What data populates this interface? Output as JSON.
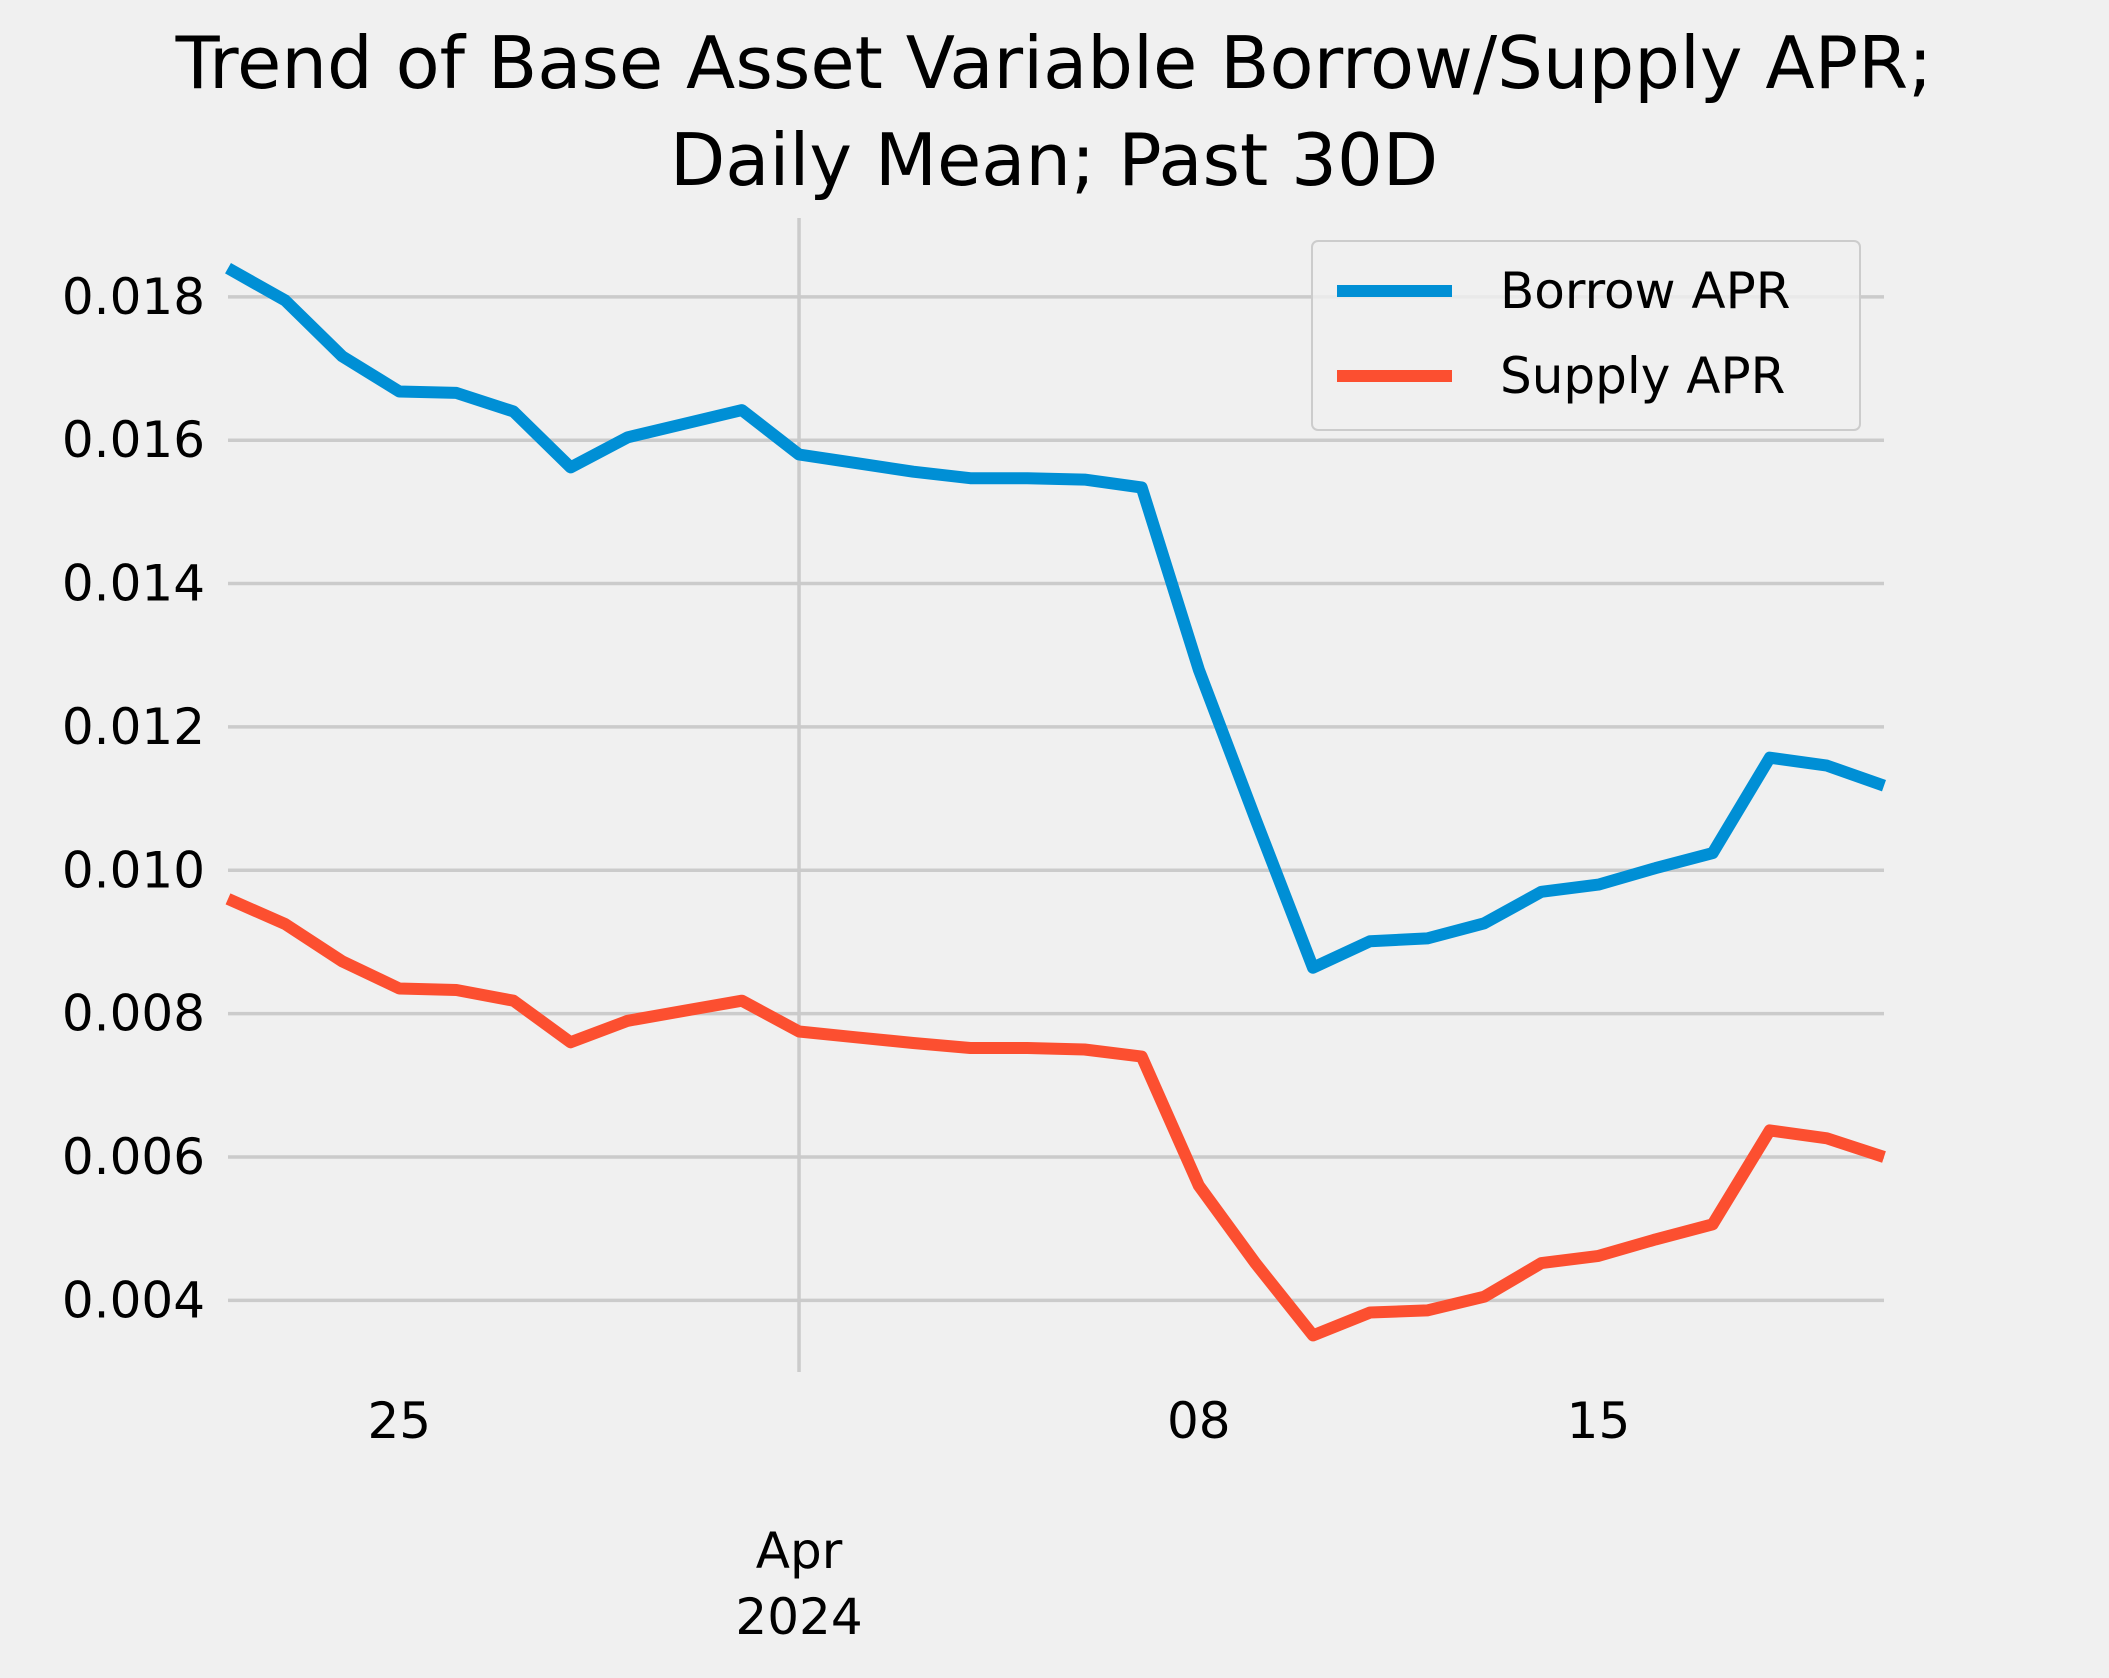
{
  "chart_data": {
    "type": "line",
    "title": "Trend of Base Asset Variable Borrow/Supply APR;\nDaily Mean; Past 30D",
    "title_lines": [
      "Trend of Base Asset Variable Borrow/Supply APR;",
      "Daily Mean; Past 30D"
    ],
    "xlabel": "",
    "ylabel": "",
    "x": [
      "2024-03-22",
      "2024-03-23",
      "2024-03-24",
      "2024-03-25",
      "2024-03-26",
      "2024-03-27",
      "2024-03-28",
      "2024-03-29",
      "2024-03-30",
      "2024-03-31",
      "2024-04-01",
      "2024-04-02",
      "2024-04-03",
      "2024-04-04",
      "2024-04-05",
      "2024-04-06",
      "2024-04-07",
      "2024-04-08",
      "2024-04-09",
      "2024-04-10",
      "2024-04-11",
      "2024-04-12",
      "2024-04-13",
      "2024-04-14",
      "2024-04-15",
      "2024-04-16",
      "2024-04-17",
      "2024-04-18",
      "2024-04-19",
      "2024-04-20"
    ],
    "xlim": [
      "2024-03-22",
      "2024-04-20"
    ],
    "ylim": [
      0.003,
      0.0191
    ],
    "grid": true,
    "legend_position": "top-right",
    "x_ticks": [
      {
        "date": "2024-03-25",
        "label": "25",
        "sublabel": ""
      },
      {
        "date": "2024-04-01",
        "label": "Apr",
        "sublabel": "2024",
        "major": true
      },
      {
        "date": "2024-04-08",
        "label": "08",
        "sublabel": ""
      },
      {
        "date": "2024-04-15",
        "label": "15",
        "sublabel": ""
      }
    ],
    "y_ticks": [
      {
        "value": 0.004,
        "label": "0.004"
      },
      {
        "value": 0.006,
        "label": "0.006"
      },
      {
        "value": 0.008,
        "label": "0.008"
      },
      {
        "value": 0.01,
        "label": "0.010"
      },
      {
        "value": 0.012,
        "label": "0.012"
      },
      {
        "value": 0.014,
        "label": "0.014"
      },
      {
        "value": 0.016,
        "label": "0.016"
      },
      {
        "value": 0.018,
        "label": "0.018"
      }
    ],
    "series": [
      {
        "name": "Borrow APR",
        "color": "#008fd5",
        "values": [
          0.0184,
          0.01795,
          0.01717,
          0.01668,
          0.01666,
          0.0164,
          0.01562,
          0.01604,
          0.01623,
          0.01642,
          0.0158,
          0.01568,
          0.01556,
          0.01547,
          0.01547,
          0.01545,
          0.01534,
          0.0128,
          0.0107,
          0.00864,
          0.00901,
          0.00905,
          0.00926,
          0.0097,
          0.0098,
          0.01003,
          0.01024,
          0.01157,
          0.01146,
          0.01118
        ]
      },
      {
        "name": "Supply APR",
        "color": "#fc4f30",
        "values": [
          0.0096,
          0.00925,
          0.00873,
          0.00835,
          0.00833,
          0.00818,
          0.0076,
          0.0079,
          0.00804,
          0.00818,
          0.00775,
          0.00767,
          0.00759,
          0.00752,
          0.00752,
          0.0075,
          0.0074,
          0.0056,
          0.00451,
          0.00351,
          0.00383,
          0.00386,
          0.00405,
          0.00452,
          0.00462,
          0.00485,
          0.00506,
          0.00637,
          0.00626,
          0.006
        ]
      }
    ]
  }
}
